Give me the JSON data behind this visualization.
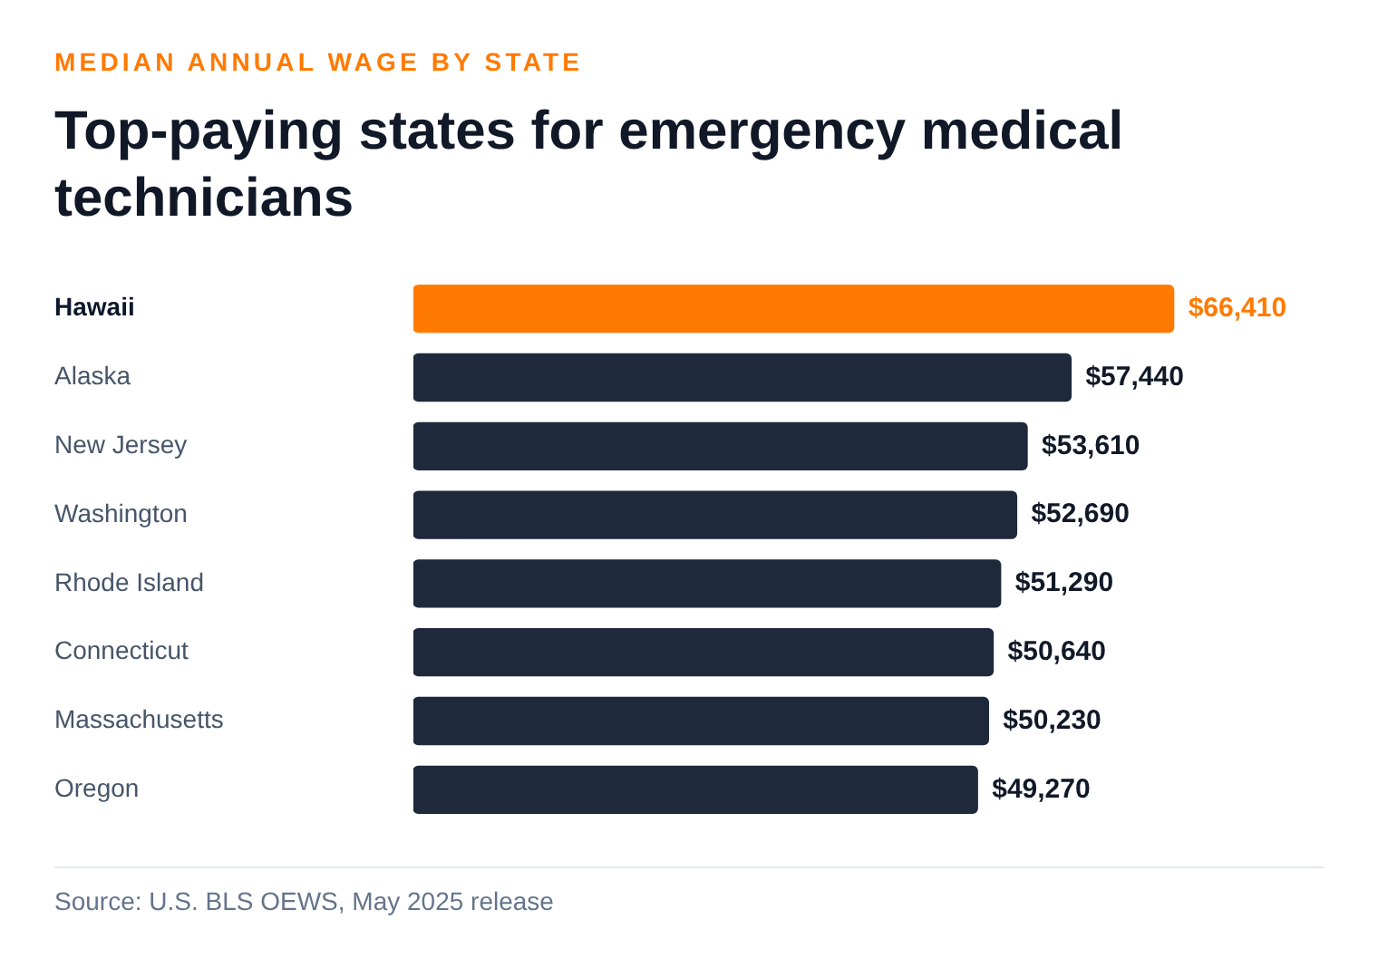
{
  "chart_data": {
    "type": "bar",
    "orientation": "horizontal",
    "subtitle": "MEDIAN ANNUAL WAGE BY STATE",
    "title": "Top-paying states for emergency medical technicians",
    "categories": [
      "Hawaii",
      "Alaska",
      "New Jersey",
      "Washington",
      "Rhode Island",
      "Connecticut",
      "Massachusetts",
      "Oregon"
    ],
    "values": [
      66410,
      57440,
      53610,
      52690,
      51290,
      50640,
      50230,
      49270
    ],
    "colors": [
      "#ff7a00",
      "#1e293b",
      "#1e293b",
      "#1e293b",
      "#1e293b",
      "#1e293b",
      "#1e293b",
      "#1e293b"
    ],
    "value_labels": [
      "$66,410",
      "$57,440",
      "$53,610",
      "$52,690",
      "$51,290",
      "$50,640",
      "$50,230",
      "$49,270"
    ],
    "tick_labels": "y",
    "annotations": [
      "Source: U.S. BLS OEWS, May 2025 release"
    ]
  }
}
